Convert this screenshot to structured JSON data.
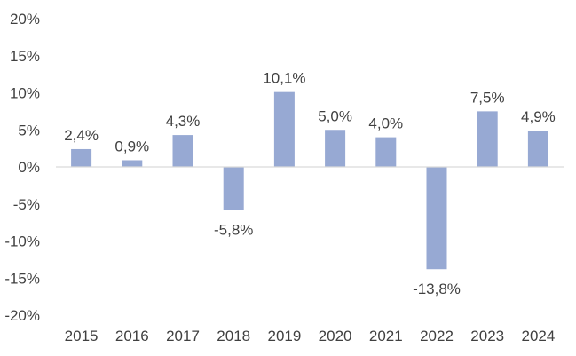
{
  "chart_data": {
    "type": "bar",
    "categories": [
      "2015",
      "2016",
      "2017",
      "2018",
      "2019",
      "2020",
      "2021",
      "2022",
      "2023",
      "2024"
    ],
    "values": [
      2.4,
      0.9,
      4.3,
      -5.8,
      10.1,
      5.0,
      4.0,
      -13.8,
      7.5,
      4.9
    ],
    "data_labels": [
      "2,4%",
      "0,9%",
      "4,3%",
      "-5,8%",
      "10,1%",
      "5,0%",
      "4,0%",
      "-13,8%",
      "7,5%",
      "4,9%"
    ],
    "yticks": [
      20,
      15,
      10,
      5,
      0,
      -5,
      -10,
      -15,
      -20
    ],
    "ytick_labels": [
      "20%",
      "15%",
      "10%",
      "5%",
      "0%",
      "-5%",
      "-10%",
      "-15%",
      "-20%"
    ],
    "ylim": [
      -20,
      20
    ],
    "title": "",
    "xlabel": "",
    "ylabel": "",
    "grid": false,
    "legend": "none",
    "colors": {
      "bar": "#97a9d3",
      "axis_line": "#d9d9d9",
      "text": "#404040"
    }
  }
}
